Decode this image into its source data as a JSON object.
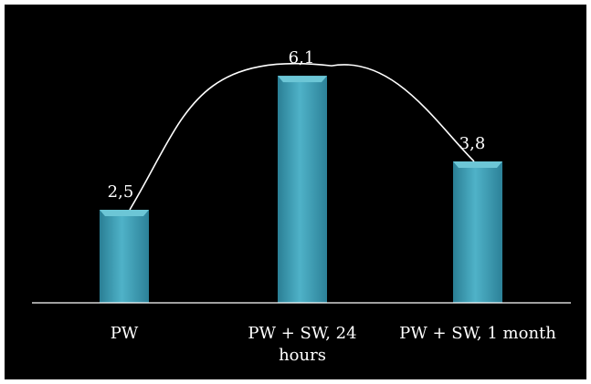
{
  "chart_data": {
    "type": "bar",
    "categories": [
      "PW",
      "PW + SW, 24 hours",
      "PW + SW, 1 month"
    ],
    "category_label_lines": [
      [
        "PW"
      ],
      [
        "PW + SW, 24",
        "hours"
      ],
      [
        "PW + SW, 1 month"
      ]
    ],
    "values": [
      2.5,
      6.1,
      3.8
    ],
    "data_labels": [
      "2,5",
      "6,1",
      "3,8"
    ],
    "ylim": [
      0,
      7.5
    ],
    "grid": false,
    "trend_curve": true,
    "colors": {
      "background": "#000000",
      "bar": "#3f9fb7",
      "bar_top": "#6cc6d6",
      "axis": "#ffffff",
      "text": "#ffffff",
      "curve": "#ffffff"
    }
  }
}
